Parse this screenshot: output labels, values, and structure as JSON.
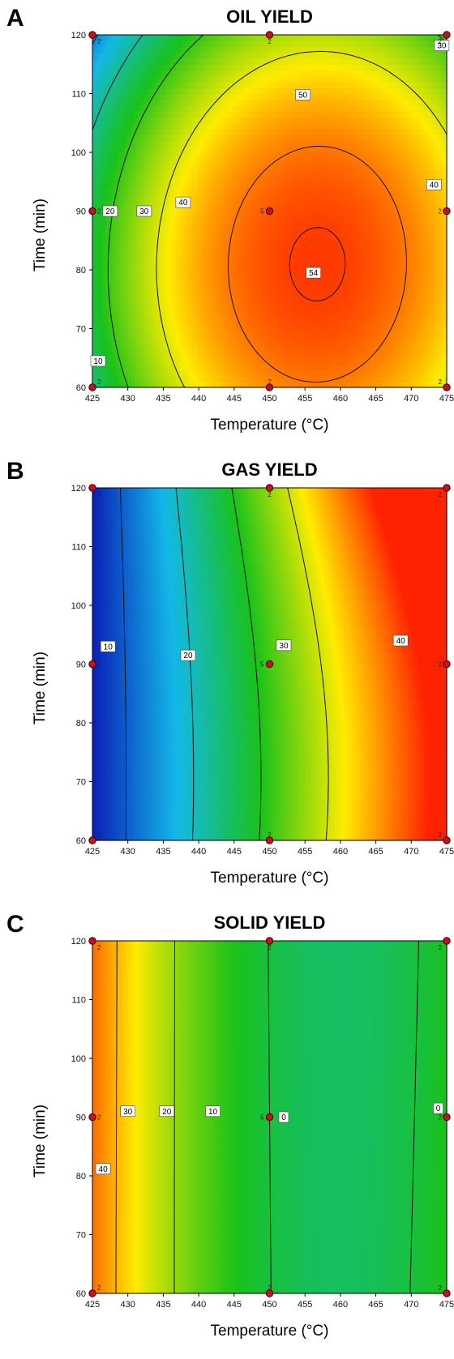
{
  "panels": [
    {
      "letter": "A",
      "title": "OIL YIELD",
      "xlabel": "Temperature (°C)",
      "ylabel": "Time (min)"
    },
    {
      "letter": "B",
      "title": "GAS YIELD",
      "xlabel": "Temperature (°C)",
      "ylabel": "Time (min)"
    },
    {
      "letter": "C",
      "title": "SOLID YIELD",
      "xlabel": "Temperature (°C)",
      "ylabel": "Time (min)"
    }
  ],
  "chart_data": [
    {
      "type": "heatmap",
      "title": "OIL YIELD",
      "xlabel": "Temperature (°C)",
      "ylabel": "Time (min)",
      "xlim": [
        425,
        475
      ],
      "ylim": [
        60,
        120
      ],
      "xticks": [
        425,
        430,
        435,
        440,
        445,
        450,
        455,
        460,
        465,
        470,
        475
      ],
      "yticks": [
        60,
        70,
        80,
        90,
        100,
        110,
        120
      ],
      "colormap": {
        "low": "#0a1fb8",
        "mid_low": "#13b8e8",
        "mid": "#19c219",
        "mid_high": "#ffec00",
        "high": "#ff2200"
      },
      "value_range": [
        0,
        56
      ],
      "contour_levels": [
        10,
        20,
        30,
        40,
        50,
        54
      ],
      "contour_labels": [
        {
          "text": "10",
          "x": 425.8,
          "y": 64.5
        },
        {
          "text": "20",
          "x": 427.5,
          "y": 90
        },
        {
          "text": "30",
          "x": 432.3,
          "y": 90
        },
        {
          "text": "40",
          "x": 437.8,
          "y": 91.5
        },
        {
          "text": "50",
          "x": 454.7,
          "y": 109.8
        },
        {
          "text": "54",
          "x": 456.2,
          "y": 79.5
        },
        {
          "text": "40",
          "x": 473.2,
          "y": 94.5
        },
        {
          "text": "30",
          "x": 474.3,
          "y": 118.2
        }
      ],
      "design_points": [
        {
          "x": 425,
          "y": 120,
          "label": "2"
        },
        {
          "x": 450,
          "y": 120,
          "label": "2"
        },
        {
          "x": 475,
          "y": 120,
          "label": "2"
        },
        {
          "x": 425,
          "y": 90,
          "label": "2"
        },
        {
          "x": 450,
          "y": 90,
          "label": "5"
        },
        {
          "x": 475,
          "y": 90,
          "label": "2"
        },
        {
          "x": 425,
          "y": 60,
          "label": "2"
        },
        {
          "x": 450,
          "y": 60,
          "label": "2"
        },
        {
          "x": 475,
          "y": 60,
          "label": "2"
        }
      ]
    },
    {
      "type": "heatmap",
      "title": "GAS YIELD",
      "xlabel": "Temperature (°C)",
      "ylabel": "Time (min)",
      "xlim": [
        425,
        475
      ],
      "ylim": [
        60,
        120
      ],
      "xticks": [
        425,
        430,
        435,
        440,
        445,
        450,
        455,
        460,
        465,
        470,
        475
      ],
      "yticks": [
        60,
        70,
        80,
        90,
        100,
        110,
        120
      ],
      "colormap": {
        "low": "#0a1fb8",
        "mid_low": "#13b8e8",
        "mid": "#19c219",
        "mid_high": "#ffec00",
        "high": "#ff2200"
      },
      "value_range": [
        5,
        55
      ],
      "contour_levels": [
        10,
        20,
        30,
        40
      ],
      "contour_labels": [
        {
          "text": "10",
          "x": 427.2,
          "y": 93
        },
        {
          "text": "20",
          "x": 438.5,
          "y": 91.5
        },
        {
          "text": "30",
          "x": 452,
          "y": 93.2
        },
        {
          "text": "40",
          "x": 468.5,
          "y": 94
        }
      ],
      "design_points": [
        {
          "x": 425,
          "y": 120,
          "label": "2"
        },
        {
          "x": 450,
          "y": 120,
          "label": "2"
        },
        {
          "x": 475,
          "y": 120,
          "label": "2"
        },
        {
          "x": 425,
          "y": 90,
          "label": "2"
        },
        {
          "x": 450,
          "y": 90,
          "label": "5"
        },
        {
          "x": 475,
          "y": 90,
          "label": "2"
        },
        {
          "x": 425,
          "y": 60,
          "label": "2"
        },
        {
          "x": 450,
          "y": 60,
          "label": "2"
        },
        {
          "x": 475,
          "y": 60,
          "label": "2"
        }
      ]
    },
    {
      "type": "heatmap",
      "title": "SOLID YIELD",
      "xlabel": "Temperature (°C)",
      "ylabel": "Time (min)",
      "xlim": [
        425,
        475
      ],
      "ylim": [
        60,
        120
      ],
      "xticks": [
        425,
        430,
        435,
        440,
        445,
        450,
        455,
        460,
        465,
        470,
        475
      ],
      "yticks": [
        60,
        70,
        80,
        90,
        100,
        110,
        120
      ],
      "colormap": {
        "low": "#0a1fb8",
        "mid_low": "#13b8e8",
        "mid": "#19c219",
        "mid_high": "#ffec00",
        "high": "#ff2200"
      },
      "value_range": [
        -5,
        50
      ],
      "contour_levels": [
        0,
        10,
        20,
        30,
        40
      ],
      "contour_labels": [
        {
          "text": "40",
          "x": 426.5,
          "y": 81.2
        },
        {
          "text": "30",
          "x": 430,
          "y": 91
        },
        {
          "text": "20",
          "x": 435.5,
          "y": 91
        },
        {
          "text": "10",
          "x": 442,
          "y": 91
        },
        {
          "text": "0",
          "x": 452,
          "y": 90
        },
        {
          "text": "0",
          "x": 473.8,
          "y": 91.5
        }
      ],
      "design_points": [
        {
          "x": 425,
          "y": 120,
          "label": "2"
        },
        {
          "x": 450,
          "y": 120,
          "label": "2"
        },
        {
          "x": 475,
          "y": 120,
          "label": "2"
        },
        {
          "x": 425,
          "y": 90,
          "label": "2"
        },
        {
          "x": 450,
          "y": 90,
          "label": "5"
        },
        {
          "x": 475,
          "y": 90,
          "label": "2"
        },
        {
          "x": 425,
          "y": 60,
          "label": "2"
        },
        {
          "x": 450,
          "y": 60,
          "label": "2"
        },
        {
          "x": 475,
          "y": 60,
          "label": "2"
        }
      ]
    }
  ]
}
